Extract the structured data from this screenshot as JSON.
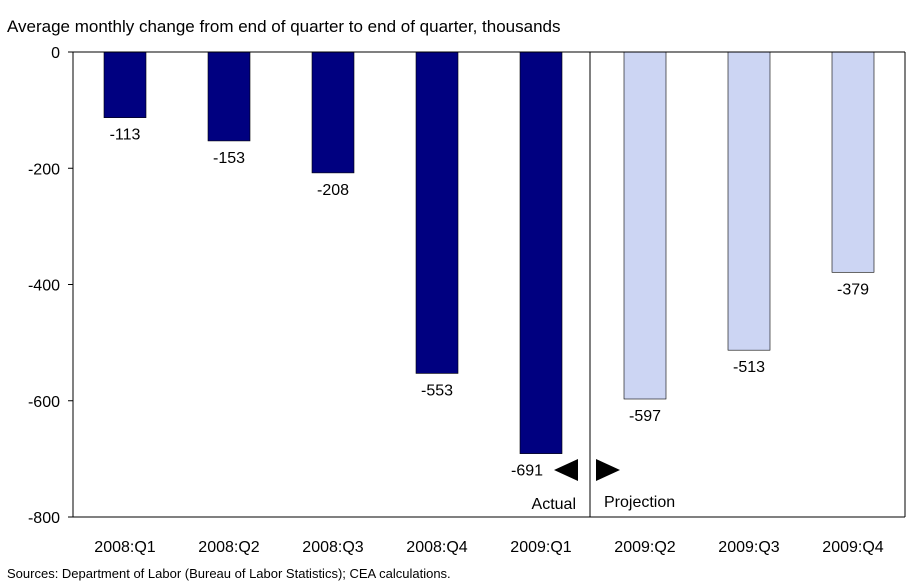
{
  "chart_data": {
    "type": "bar",
    "title": "Average monthly change from end of quarter to end of quarter, thousands",
    "categories": [
      "2008:Q1",
      "2008:Q2",
      "2008:Q3",
      "2008:Q4",
      "2009:Q1",
      "2009:Q2",
      "2009:Q3",
      "2009:Q4"
    ],
    "series": [
      {
        "values": [
          -113,
          -153,
          -208,
          -553,
          -691,
          null,
          null,
          null
        ],
        "color": "#000080"
      },
      {
        "values": [
          null,
          null,
          null,
          null,
          null,
          -597,
          -513,
          -379
        ],
        "color": "#ccd5f3"
      }
    ],
    "data_labels": [
      "-113",
      "-153",
      "-208",
      "-553",
      "-691",
      "-597",
      "-513",
      "-379"
    ],
    "ylim": [
      -800,
      0
    ],
    "yticks": [
      0,
      -200,
      -400,
      -600,
      -800
    ],
    "yticklabels": [
      "0",
      "-200",
      "-400",
      "-600",
      "-800"
    ],
    "grid": false,
    "divider_after_category": "2009:Q1",
    "annotations": {
      "actual": "Actual",
      "projection": "Projection"
    },
    "source": "Sources:  Department of Labor (Bureau of Labor Statistics); CEA calculations."
  }
}
